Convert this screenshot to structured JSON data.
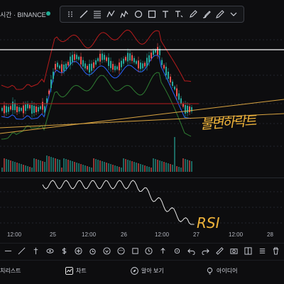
{
  "header": {
    "symbol_text": "시간 · BINANCE",
    "live_color": "#22ab94"
  },
  "toolbar": {
    "icons": [
      "crosshair-icon",
      "trendline-icon",
      "fib-icon",
      "brush-icon",
      "pattern-icon",
      "shape-icon",
      "rect-icon",
      "text-icon",
      "text-note-icon",
      "pencil-icon",
      "arrow-icon",
      "highlighter-icon",
      "eraser-icon"
    ]
  },
  "chart": {
    "candle_up_color": "#26a69a",
    "candle_down_color": "#ef5350",
    "ma_color": "#2962ff",
    "band_upper_color": "#b71c1c",
    "band_lower_color": "#2e7d32",
    "trend_line_color": "#d9a441",
    "level_line_color": "#ffffff"
  },
  "annotations": {
    "trend_note": "불변하락트",
    "rsi_note": "RSI"
  },
  "x_axis": {
    "labels": [
      "12:00",
      "25",
      "12:00",
      "26",
      "12:00",
      "27",
      "12:00",
      "28"
    ]
  },
  "tools_row": {
    "icons": [
      "plus-icon",
      "pin-icon",
      "undo-icon",
      "more-icon",
      "lock-icon",
      "settings-icon",
      "calendar-icon",
      "alert-icon",
      "plus-icon",
      "alarm-icon",
      "compare-icon",
      "indicator-icon",
      "object-icon",
      "replay-icon",
      "undo-icon",
      "redo-icon",
      "ruler-icon",
      "camera-icon",
      "layout-icon",
      "list-icon",
      "trash-icon"
    ]
  },
  "bottom_nav": {
    "items": [
      {
        "label": "치리스트",
        "icon": "list-icon"
      },
      {
        "label": "차트",
        "icon": "chart-icon"
      },
      {
        "label": "알아 보기",
        "icon": "compass-icon"
      },
      {
        "label": "아이디어",
        "icon": "bulb-icon"
      }
    ]
  }
}
